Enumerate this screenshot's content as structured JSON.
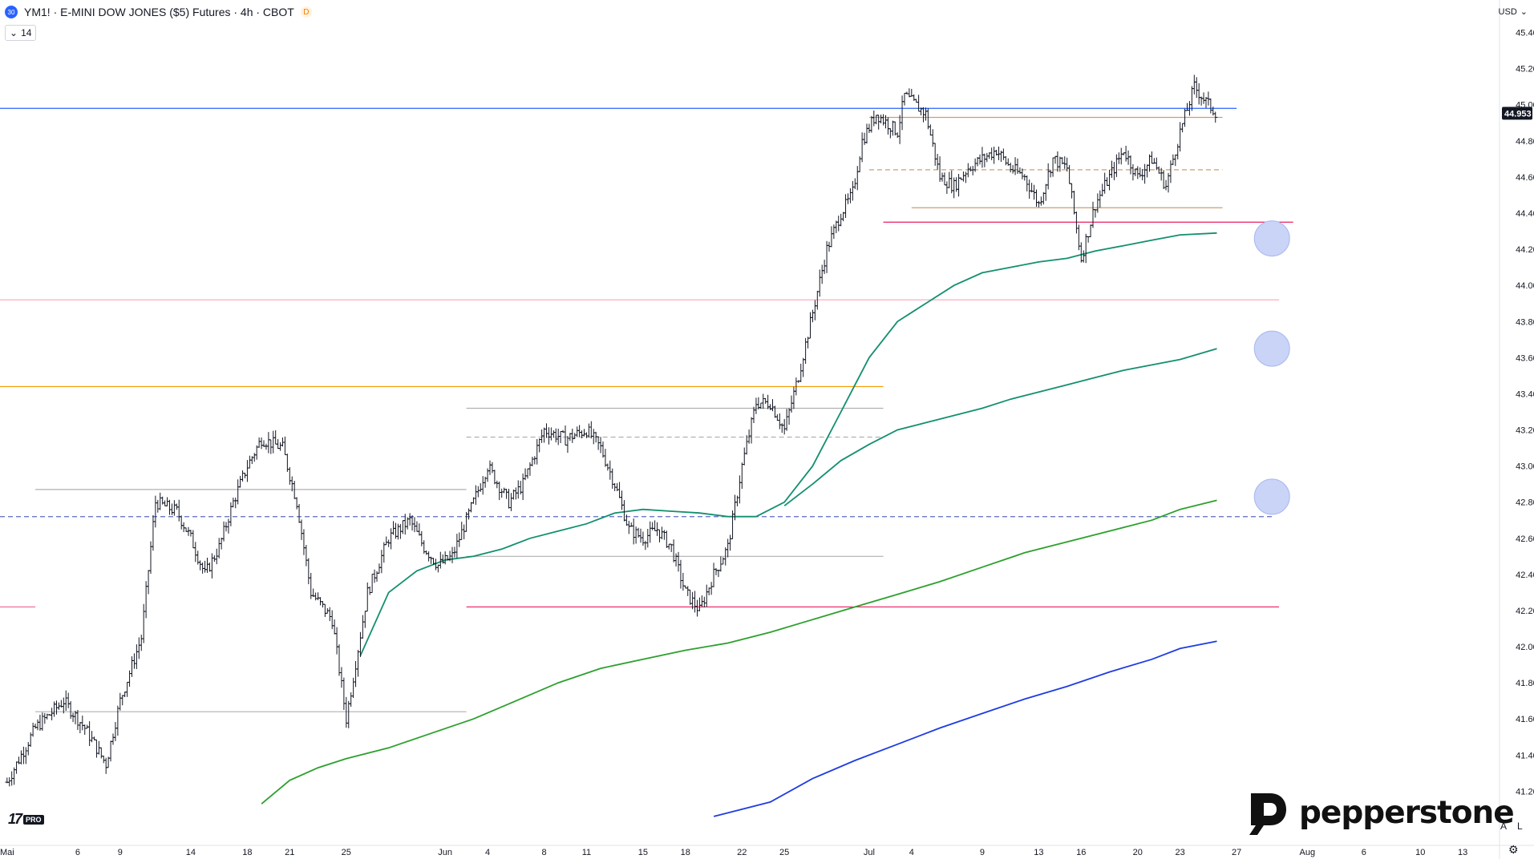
{
  "header": {
    "symbol_badge": "30",
    "title": "YM1! · E-MINI DOW JONES ($5) Futures · 4h · CBOT",
    "dbadge": "D",
    "indicator_arrow": "⌄",
    "indicator_value": "14",
    "currency": "USD",
    "currency_arrow": "⌄"
  },
  "brand": {
    "tv_mark": "17",
    "tv_pro": "PRO",
    "pepperstone": "pepperstone"
  },
  "bottom_buttons": {
    "auto": "A",
    "log": "L"
  },
  "colors": {
    "candles": "#131722",
    "resistance_blue": "#2962ff",
    "orange": "#f59b00",
    "pink": "#f06292",
    "green_dark": "#138f6f",
    "green": "#2ca02c",
    "blue": "#1e3ce0",
    "circle": "#c9d4f7",
    "tan": "#c8a06e"
  },
  "chart_data": {
    "type": "candlestick",
    "symbol": "YM1!",
    "timeframe": "4h",
    "y_axis": {
      "ylim": [
        40900,
        45580
      ],
      "ticks": [
        "45.400",
        "45.200",
        "45.000",
        "44.800",
        "44.600",
        "44.400",
        "44.200",
        "44.000",
        "43.800",
        "43.600",
        "43.400",
        "43.200",
        "43.000",
        "42.800",
        "42.600",
        "42.400",
        "42.200",
        "42.000",
        "41.800",
        "41.600",
        "41.400",
        "41.200"
      ],
      "tick_values": [
        45400,
        45200,
        45000,
        44800,
        44600,
        44400,
        44200,
        44000,
        43800,
        43600,
        43400,
        43200,
        43000,
        42800,
        42600,
        42400,
        42200,
        42000,
        41800,
        41600,
        41400,
        41200
      ]
    },
    "x_axis": {
      "labels": [
        "Mai",
        "6",
        "9",
        "14",
        "18",
        "21",
        "25",
        "Jun",
        "4",
        "8",
        "11",
        "15",
        "18",
        "22",
        "25",
        "Jul",
        "4",
        "9",
        "13",
        "16",
        "20",
        "23",
        "27",
        "Aug",
        "6",
        "10",
        "13"
      ],
      "label_days": [
        1,
        6,
        9,
        14,
        18,
        21,
        25,
        32,
        35,
        39,
        42,
        46,
        49,
        53,
        56,
        62,
        65,
        70,
        74,
        77,
        81,
        84,
        88,
        93,
        97,
        101,
        104
      ],
      "xlim": [
        0.5,
        106.6
      ]
    },
    "last_price": "44.953",
    "last_price_value": 44953,
    "ohlc": {
      "start_day": 1,
      "end_day": 86.6,
      "waypoints": [
        [
          1,
          41250
        ],
        [
          3,
          41550
        ],
        [
          5,
          41700
        ],
        [
          6.5,
          41550
        ],
        [
          8,
          41350
        ],
        [
          9,
          41700
        ],
        [
          10.5,
          42050
        ],
        [
          11.5,
          42800
        ],
        [
          13,
          42750
        ],
        [
          14,
          42600
        ],
        [
          15,
          42400
        ],
        [
          16,
          42550
        ],
        [
          17,
          42800
        ],
        [
          18,
          43000
        ],
        [
          19,
          43150
        ],
        [
          20.5,
          43100
        ],
        [
          21.5,
          42800
        ],
        [
          22.5,
          42300
        ],
        [
          24,
          42150
        ],
        [
          25,
          41600
        ],
        [
          26.5,
          42300
        ],
        [
          28,
          42600
        ],
        [
          29.5,
          42700
        ],
        [
          30.5,
          42550
        ],
        [
          31.5,
          42450
        ],
        [
          32.5,
          42500
        ],
        [
          34,
          42800
        ],
        [
          35,
          43000
        ],
        [
          36.5,
          42800
        ],
        [
          37.5,
          42900
        ],
        [
          39,
          43200
        ],
        [
          40.5,
          43150
        ],
        [
          42,
          43200
        ],
        [
          43,
          43100
        ],
        [
          44,
          42900
        ],
        [
          45,
          42650
        ],
        [
          46,
          42600
        ],
        [
          47,
          42650
        ],
        [
          48,
          42550
        ],
        [
          49,
          42300
        ],
        [
          50,
          42200
        ],
        [
          51,
          42400
        ],
        [
          52,
          42550
        ],
        [
          53,
          43000
        ],
        [
          54,
          43350
        ],
        [
          55,
          43350
        ],
        [
          56,
          43200
        ],
        [
          57,
          43500
        ],
        [
          58,
          43850
        ],
        [
          59,
          44200
        ],
        [
          60,
          44400
        ],
        [
          60.8,
          44500
        ],
        [
          61.5,
          44800
        ],
        [
          62.5,
          44950
        ],
        [
          64,
          44850
        ],
        [
          64.5,
          45050
        ],
        [
          66,
          44950
        ],
        [
          67,
          44600
        ],
        [
          68,
          44550
        ],
        [
          69,
          44650
        ],
        [
          70,
          44700
        ],
        [
          71,
          44750
        ],
        [
          72,
          44650
        ],
        [
          73,
          44600
        ],
        [
          74,
          44450
        ],
        [
          75,
          44700
        ],
        [
          76,
          44650
        ],
        [
          77,
          44150
        ],
        [
          78,
          44450
        ],
        [
          79,
          44600
        ],
        [
          80,
          44750
        ],
        [
          81,
          44600
        ],
        [
          82,
          44700
        ],
        [
          83,
          44550
        ],
        [
          84,
          44850
        ],
        [
          85,
          45100
        ],
        [
          86,
          45000
        ],
        [
          86.6,
          44953
        ]
      ],
      "notable_extremes": {
        "high": 45220,
        "low": 41550
      }
    },
    "horizontal_levels": [
      {
        "price": 44980,
        "from_day": 0.5,
        "to_day": 88,
        "color": "#2962ff",
        "style": "solid"
      },
      {
        "price": 44930,
        "from_day": 62,
        "to_day": 87,
        "color": "#c8a06e",
        "style": "solid"
      },
      {
        "price": 44640,
        "from_day": 62,
        "to_day": 87,
        "color": "#c8a06e",
        "style": "dashed"
      },
      {
        "price": 44430,
        "from_day": 65,
        "to_day": 87,
        "color": "#c8a06e",
        "style": "solid"
      },
      {
        "price": 44350,
        "from_day": 63,
        "to_day": 92,
        "color": "#e91e63",
        "style": "solid"
      },
      {
        "price": 43920,
        "from_day": 0.5,
        "to_day": 91,
        "color": "#f8a5b8",
        "style": "solid"
      },
      {
        "price": 43440,
        "from_day": 0.5,
        "to_day": 63,
        "color": "#f59b00",
        "style": "solid"
      },
      {
        "price": 43320,
        "from_day": 33.5,
        "to_day": 63,
        "color": "#b0b0b0",
        "style": "solid"
      },
      {
        "price": 43160,
        "from_day": 33.5,
        "to_day": 63,
        "color": "#b0b0b0",
        "style": "dashed"
      },
      {
        "price": 42870,
        "from_day": 3,
        "to_day": 33.5,
        "color": "#b0b0b0",
        "style": "solid"
      },
      {
        "price": 42720,
        "from_day": 0.5,
        "to_day": 90.5,
        "color": "#5c6bc0",
        "style": "dashed"
      },
      {
        "price": 42500,
        "from_day": 33.5,
        "to_day": 63,
        "color": "#b0b0b0",
        "style": "solid"
      },
      {
        "price": 42220,
        "from_day": 0.5,
        "to_day": 3,
        "color": "#f06292",
        "style": "solid"
      },
      {
        "price": 42220,
        "from_day": 33.5,
        "to_day": 91,
        "color": "#e91e63",
        "style": "solid"
      },
      {
        "price": 41640,
        "from_day": 3,
        "to_day": 33.5,
        "color": "#b0b0b0",
        "style": "solid"
      }
    ],
    "moving_averages": [
      {
        "color": "#138f6f",
        "points": [
          [
            26,
            41950
          ],
          [
            28,
            42300
          ],
          [
            30,
            42420
          ],
          [
            32,
            42480
          ],
          [
            34,
            42500
          ],
          [
            36,
            42540
          ],
          [
            38,
            42600
          ],
          [
            40,
            42640
          ],
          [
            42,
            42680
          ],
          [
            44,
            42740
          ],
          [
            46,
            42760
          ],
          [
            48,
            42750
          ],
          [
            50,
            42740
          ],
          [
            52,
            42720
          ],
          [
            54,
            42720
          ],
          [
            56,
            42800
          ],
          [
            58,
            43000
          ],
          [
            60,
            43300
          ],
          [
            62,
            43600
          ],
          [
            64,
            43800
          ],
          [
            66,
            43900
          ],
          [
            68,
            44000
          ],
          [
            70,
            44070
          ],
          [
            72,
            44100
          ],
          [
            74,
            44130
          ],
          [
            76,
            44150
          ],
          [
            78,
            44190
          ],
          [
            80,
            44220
          ],
          [
            82,
            44250
          ],
          [
            84,
            44280
          ],
          [
            86.6,
            44290
          ]
        ]
      },
      {
        "color": "#138f6f",
        "points": [
          [
            56,
            42780
          ],
          [
            58,
            42900
          ],
          [
            60,
            43030
          ],
          [
            62,
            43120
          ],
          [
            64,
            43200
          ],
          [
            66,
            43240
          ],
          [
            68,
            43280
          ],
          [
            70,
            43320
          ],
          [
            72,
            43370
          ],
          [
            74,
            43410
          ],
          [
            76,
            43450
          ],
          [
            78,
            43490
          ],
          [
            80,
            43530
          ],
          [
            82,
            43560
          ],
          [
            84,
            43590
          ],
          [
            86.6,
            43650
          ]
        ]
      },
      {
        "color": "#2ca02c",
        "points": [
          [
            19,
            41130
          ],
          [
            21,
            41260
          ],
          [
            23,
            41330
          ],
          [
            25,
            41380
          ],
          [
            28,
            41440
          ],
          [
            31,
            41520
          ],
          [
            34,
            41600
          ],
          [
            37,
            41700
          ],
          [
            40,
            41800
          ],
          [
            43,
            41880
          ],
          [
            46,
            41930
          ],
          [
            49,
            41980
          ],
          [
            52,
            42020
          ],
          [
            55,
            42080
          ],
          [
            58,
            42150
          ],
          [
            61,
            42220
          ],
          [
            64,
            42290
          ],
          [
            67,
            42360
          ],
          [
            70,
            42440
          ],
          [
            73,
            42520
          ],
          [
            76,
            42580
          ],
          [
            79,
            42640
          ],
          [
            82,
            42700
          ],
          [
            84,
            42760
          ],
          [
            86.6,
            42810
          ]
        ]
      },
      {
        "color": "#1e3ce0",
        "points": [
          [
            51,
            41060
          ],
          [
            55,
            41140
          ],
          [
            58,
            41270
          ],
          [
            61,
            41370
          ],
          [
            64,
            41460
          ],
          [
            67,
            41550
          ],
          [
            70,
            41630
          ],
          [
            73,
            41710
          ],
          [
            76,
            41780
          ],
          [
            79,
            41860
          ],
          [
            82,
            41930
          ],
          [
            84,
            41990
          ],
          [
            86.6,
            42030
          ]
        ]
      }
    ],
    "circles": [
      {
        "day": 90.5,
        "price": 44260
      },
      {
        "day": 90.5,
        "price": 43650
      },
      {
        "day": 90.5,
        "price": 42830
      }
    ]
  }
}
